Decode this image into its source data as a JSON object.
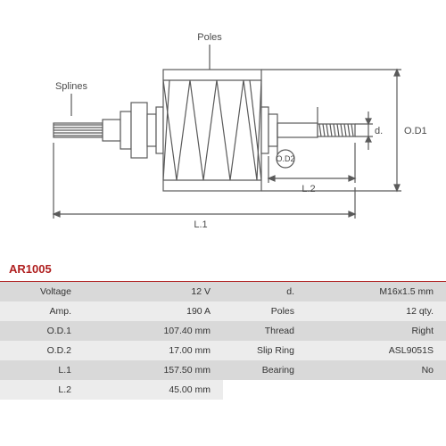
{
  "part_number": "AR1005",
  "diagram": {
    "type": "engineering-diagram",
    "labels": {
      "poles": "Poles",
      "splines": "Splines",
      "od1": "O.D1",
      "od2": "O.D2",
      "d": "d.",
      "l1": "L.1",
      "l2": "L.2"
    },
    "colors": {
      "stroke": "#5a5a5a",
      "fill_light": "#ffffff",
      "background": "#ffffff"
    },
    "stroke_width": 1.2,
    "fontsize": 11
  },
  "specs_left": [
    {
      "label": "Voltage",
      "value": "12 V"
    },
    {
      "label": "Amp.",
      "value": "190 A"
    },
    {
      "label": "O.D.1",
      "value": "107.40 mm"
    },
    {
      "label": "O.D.2",
      "value": "17.00 mm"
    },
    {
      "label": "L.1",
      "value": "157.50 mm"
    },
    {
      "label": "L.2",
      "value": "45.00 mm"
    }
  ],
  "specs_right": [
    {
      "label": "d.",
      "value": "M16x1.5 mm"
    },
    {
      "label": "Poles",
      "value": "12 qty."
    },
    {
      "label": "Thread",
      "value": "Right"
    },
    {
      "label": "Slip Ring",
      "value": "ASL9051S"
    },
    {
      "label": "Bearing",
      "value": "No"
    }
  ]
}
